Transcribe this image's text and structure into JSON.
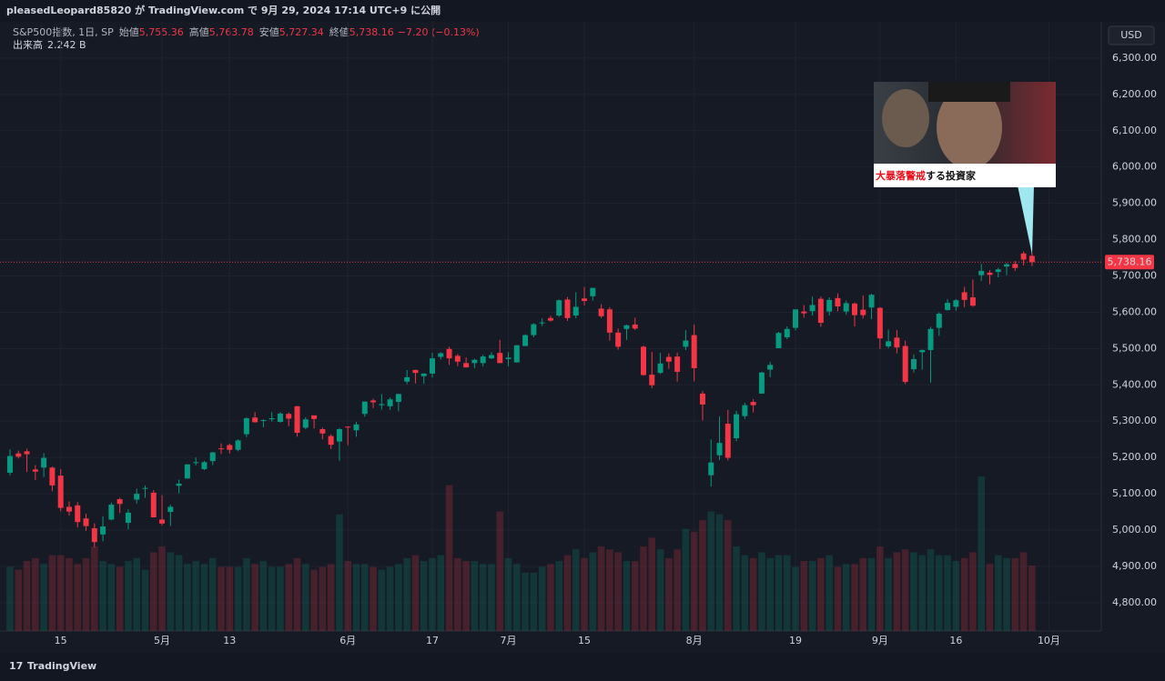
{
  "header": {
    "publish_line": "pleasedLeopard85820 が TradingView.com で 9月 29, 2024 17:14 UTC+9 に公開",
    "currency": "USD",
    "brand": "TradingView"
  },
  "chart_data": {
    "type": "candlestick",
    "symbol": "S&P500指数, 1日, SP",
    "ohlc_names": {
      "open": "始値",
      "high": "高値",
      "low": "安値",
      "close": "終値"
    },
    "last_labels": {
      "open": "5,755.36",
      "high": "5,763.78",
      "low": "5,727.34",
      "close": "5,738.16",
      "change": "−7.20 (−0.13%)"
    },
    "last_price_label": "5,738.16",
    "up_color": "#089981",
    "down_color": "#f23645",
    "grid": true,
    "categories": [
      null,
      null,
      null,
      null,
      null,
      null,
      "15",
      null,
      null,
      null,
      null,
      null,
      null,
      null,
      null,
      null,
      null,
      null,
      "5月",
      null,
      null,
      null,
      null,
      null,
      null,
      null,
      "13",
      null,
      null,
      null,
      null,
      null,
      null,
      null,
      null,
      null,
      null,
      null,
      null,
      null,
      "6月",
      null,
      null,
      null,
      null,
      null,
      null,
      null,
      null,
      null,
      "17",
      null,
      null,
      null,
      null,
      null,
      null,
      null,
      null,
      "7月",
      null,
      null,
      null,
      null,
      null,
      null,
      null,
      null,
      "15",
      null,
      null,
      null,
      null,
      null,
      null,
      null,
      null,
      null,
      null,
      null,
      null,
      "8月",
      null,
      null,
      null,
      null,
      null,
      null,
      null,
      null,
      null,
      null,
      null,
      "19",
      null,
      null,
      null,
      null,
      null,
      null,
      null,
      null,
      null,
      "9月",
      null,
      null,
      null,
      null,
      null,
      null,
      null,
      null,
      "16",
      null,
      null,
      null,
      null,
      null,
      null,
      null,
      null,
      null,
      null,
      "10月"
    ],
    "open": [
      5158,
      5211,
      5217,
      5167,
      5172,
      5172,
      5150,
      5064,
      5068,
      5032,
      5005,
      4988,
      5029,
      5085,
      5020,
      5084,
      5114,
      5103,
      5029,
      5050,
      5122,
      5142,
      5187,
      5168,
      5190,
      5225,
      5234,
      5221,
      5264,
      5310,
      5303,
      5305,
      5298,
      5320,
      5341,
      5282,
      5316,
      5278,
      5259,
      5244,
      5285,
      5275,
      5320,
      5357,
      5344,
      5341,
      5353,
      5409,
      5441,
      5424,
      5431,
      5477,
      5499,
      5480,
      5460,
      5460,
      5460,
      5473,
      5488,
      5471,
      5462,
      5507,
      5537,
      5572,
      5584,
      5591,
      5635,
      5591,
      5638,
      5644,
      5610,
      5608,
      5544,
      5554,
      5566,
      5505,
      5428,
      5433,
      5477,
      5478,
      5505,
      5537,
      5376,
      5151,
      5206,
      5293,
      5253,
      5314,
      5353,
      5376,
      5442,
      5501,
      5531,
      5557,
      5602,
      5603,
      5637,
      5602,
      5639,
      5602,
      5624,
      5607,
      5613,
      5612,
      5506,
      5530,
      5507,
      5443,
      5490,
      5496,
      5557,
      5606,
      5615,
      5655,
      5641,
      5702,
      5709,
      5711,
      5726,
      5733,
      5762,
      5755.36,
      null,
      null
    ],
    "high": [
      5222,
      5219,
      5224,
      5179,
      5212,
      5175,
      5168,
      5079,
      5077,
      5045,
      5019,
      5038,
      5076,
      5089,
      5057,
      5114,
      5123,
      5110,
      5096,
      5070,
      5139,
      5181,
      5200,
      5191,
      5215,
      5239,
      5238,
      5250,
      5311,
      5325,
      5305,
      5325,
      5325,
      5324,
      5342,
      5311,
      5315,
      5282,
      5264,
      5281,
      5286,
      5298,
      5354,
      5362,
      5375,
      5365,
      5375,
      5441,
      5442,
      5432,
      5488,
      5490,
      5505,
      5485,
      5476,
      5472,
      5483,
      5490,
      5524,
      5490,
      5510,
      5539,
      5570,
      5583,
      5590,
      5635,
      5642,
      5655,
      5670,
      5667,
      5622,
      5614,
      5555,
      5566,
      5585,
      5508,
      5491,
      5488,
      5487,
      5489,
      5551,
      5566,
      5383,
      5250,
      5313,
      5331,
      5328,
      5351,
      5361,
      5436,
      5463,
      5546,
      5561,
      5608,
      5620,
      5643,
      5643,
      5641,
      5652,
      5632,
      5627,
      5646,
      5651,
      5614,
      5552,
      5551,
      5522,
      5484,
      5497,
      5560,
      5600,
      5636,
      5636,
      5670,
      5690,
      5733,
      5716,
      5722,
      5736,
      5741,
      5768,
      5763.78,
      null,
      null
    ],
    "low": [
      5151,
      5197,
      5160,
      5138,
      5146,
      5107,
      5052,
      5040,
      5007,
      4998,
      4953,
      4969,
      5027,
      5047,
      5002,
      5073,
      5089,
      5035,
      5013,
      5011,
      5101,
      5142,
      5178,
      5165,
      5179,
      5210,
      5211,
      5217,
      5256,
      5296,
      5283,
      5299,
      5296,
      5286,
      5257,
      5278,
      5280,
      5250,
      5223,
      5191,
      5234,
      5257,
      5312,
      5336,
      5332,
      5331,
      5327,
      5402,
      5404,
      5403,
      5420,
      5470,
      5455,
      5452,
      5448,
      5446,
      5451,
      5471,
      5460,
      5451,
      5461,
      5507,
      5531,
      5562,
      5574,
      5587,
      5576,
      5583,
      5619,
      5632,
      5584,
      5522,
      5497,
      5524,
      5551,
      5425,
      5391,
      5430,
      5444,
      5409,
      5496,
      5410,
      5302,
      5120,
      5193,
      5192,
      5245,
      5306,
      5324,
      5376,
      5421,
      5501,
      5526,
      5550,
      5585,
      5591,
      5560,
      5591,
      5603,
      5593,
      5561,
      5583,
      5581,
      5499,
      5501,
      5487,
      5402,
      5434,
      5442,
      5406,
      5535,
      5605,
      5604,
      5614,
      5615,
      5686,
      5677,
      5696,
      5702,
      5714,
      5729,
      5727.34,
      null,
      null
    ],
    "close": [
      5204,
      5202,
      5209,
      5161,
      5199,
      5123,
      5061,
      5051,
      5022,
      5011,
      4967,
      5010,
      5070,
      5072,
      5048,
      5100,
      5116,
      5035,
      5018,
      5064,
      5128,
      5181,
      5187,
      5187,
      5214,
      5223,
      5221,
      5247,
      5308,
      5297,
      5303,
      5308,
      5321,
      5307,
      5268,
      5305,
      5306,
      5266,
      5235,
      5278,
      5283,
      5291,
      5354,
      5352,
      5347,
      5360,
      5375,
      5421,
      5433,
      5431,
      5473,
      5487,
      5473,
      5464,
      5448,
      5469,
      5478,
      5482,
      5460,
      5475,
      5509,
      5537,
      5567,
      5572,
      5577,
      5633,
      5584,
      5615,
      5631,
      5667,
      5589,
      5544,
      5505,
      5564,
      5555,
      5427,
      5399,
      5459,
      5464,
      5436,
      5522,
      5446,
      5346,
      5186,
      5240,
      5199,
      5319,
      5344,
      5344,
      5434,
      5455,
      5543,
      5554,
      5608,
      5597,
      5620,
      5571,
      5634,
      5616,
      5625,
      5592,
      5592,
      5648,
      5528,
      5520,
      5503,
      5408,
      5471,
      5496,
      5554,
      5596,
      5626,
      5633,
      5634,
      5618,
      5714,
      5703,
      5718,
      5732,
      5722,
      5745,
      5738.16,
      null,
      null
    ],
    "volume": {
      "name": "出来高",
      "last_label": "2.242 B",
      "values": [
        2.2,
        2.1,
        2.4,
        2.5,
        2.3,
        2.6,
        2.6,
        2.5,
        2.3,
        2.5,
        2.9,
        2.4,
        2.3,
        2.2,
        2.4,
        2.5,
        2.1,
        2.7,
        2.9,
        2.7,
        2.6,
        2.3,
        2.4,
        2.3,
        2.5,
        2.2,
        2.2,
        2.2,
        2.5,
        2.3,
        2.4,
        2.2,
        2.2,
        2.3,
        2.5,
        2.3,
        2.1,
        2.2,
        2.3,
        4.0,
        2.4,
        2.3,
        2.3,
        2.2,
        2.1,
        2.2,
        2.3,
        2.5,
        2.6,
        2.4,
        2.5,
        2.6,
        5.0,
        2.5,
        2.4,
        2.4,
        2.3,
        2.3,
        4.1,
        2.5,
        2.3,
        2.0,
        2.0,
        2.2,
        2.3,
        2.4,
        2.6,
        2.8,
        2.5,
        2.7,
        2.9,
        2.8,
        2.7,
        2.4,
        2.4,
        2.9,
        3.2,
        2.8,
        2.5,
        2.8,
        3.5,
        3.4,
        3.8,
        4.1,
        4.0,
        3.8,
        2.9,
        2.6,
        2.5,
        2.7,
        2.5,
        2.6,
        2.6,
        2.2,
        2.4,
        2.4,
        2.5,
        2.6,
        2.2,
        2.3,
        2.3,
        2.5,
        2.5,
        2.9,
        2.5,
        2.7,
        2.8,
        2.7,
        2.6,
        2.8,
        2.6,
        2.6,
        2.4,
        2.5,
        2.7,
        5.3,
        2.3,
        2.6,
        2.5,
        2.5,
        2.7,
        2.242,
        null,
        null
      ]
    },
    "ylim": [
      4722,
      6400
    ],
    "yticks": [
      {
        "value": 4800,
        "label": "4,800.00"
      },
      {
        "value": 4900,
        "label": "4,900.00"
      },
      {
        "value": 5000,
        "label": "5,000.00"
      },
      {
        "value": 5100,
        "label": "5,100.00"
      },
      {
        "value": 5200,
        "label": "5,200.00"
      },
      {
        "value": 5300,
        "label": "5,300.00"
      },
      {
        "value": 5400,
        "label": "5,400.00"
      },
      {
        "value": 5500,
        "label": "5,500.00"
      },
      {
        "value": 5600,
        "label": "5,600.00"
      },
      {
        "value": 5700,
        "label": "5,700.00"
      },
      {
        "value": 5800,
        "label": "5,800.00"
      },
      {
        "value": 5900,
        "label": "5,900.00"
      },
      {
        "value": 6000,
        "label": "6,000.00"
      },
      {
        "value": 6100,
        "label": "6,100.00"
      },
      {
        "value": 6200,
        "label": "6,200.00"
      },
      {
        "value": 6300,
        "label": "6,300.00"
      }
    ],
    "annotation": {
      "parts": [
        "大暴落",
        "警戒",
        "する投資家"
      ]
    }
  }
}
